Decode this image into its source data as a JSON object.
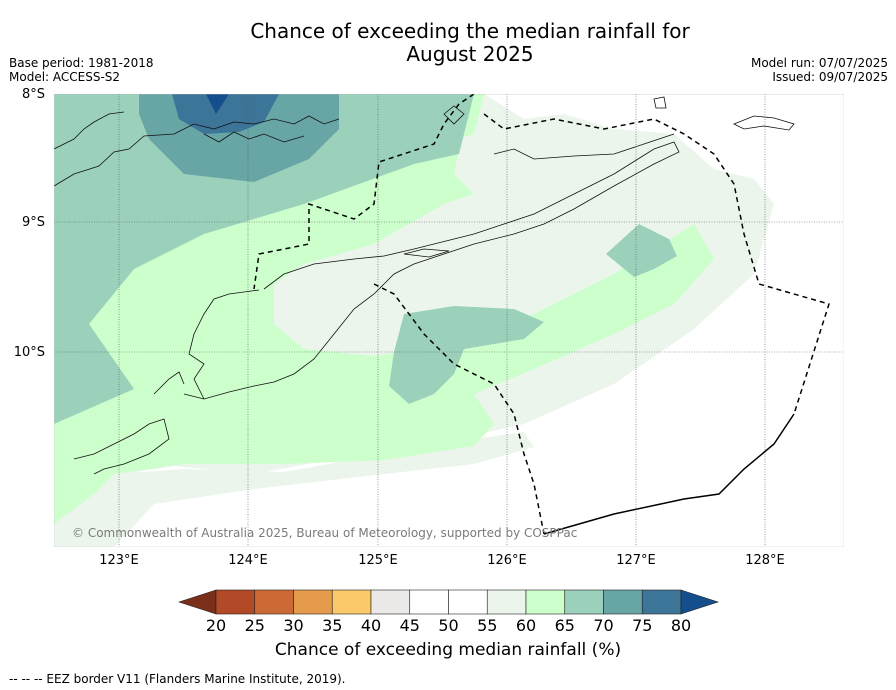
{
  "title_line1": "Chance of exceeding the median rainfall for",
  "title_line2": "August 2025",
  "base_period": "Base period: 1981-2018",
  "model": "Model: ACCESS-S2",
  "model_run": "Model run: 07/07/2025",
  "issued": "Issued: 09/07/2025",
  "lat_labels": [
    "8°S",
    "9°S",
    "10°S"
  ],
  "lon_labels": [
    "123°E",
    "124°E",
    "125°E",
    "126°E",
    "127°E",
    "128°E"
  ],
  "copyright": "© Commonwealth of Australia 2025, Bureau of Meteorology, supported by COSPPac",
  "colorbar": {
    "ticks": [
      "20",
      "25",
      "30",
      "35",
      "40",
      "45",
      "50",
      "55",
      "60",
      "65",
      "70",
      "75",
      "80"
    ],
    "colors": [
      "#7a2f1b",
      "#b34a27",
      "#cc6a36",
      "#e59a4c",
      "#fcc96a",
      "#ebe9e7",
      "#ffffff",
      "#ffffff",
      "#ebf5ec",
      "#ccffcc",
      "#9bd1bb",
      "#68a5a5",
      "#3d7599",
      "#154e8c"
    ],
    "label": "Chance of exceeding median rainfall (%)"
  },
  "footer": "--  --  -- EEZ border V11 (Flanders Marine Institute, 2019)."
}
